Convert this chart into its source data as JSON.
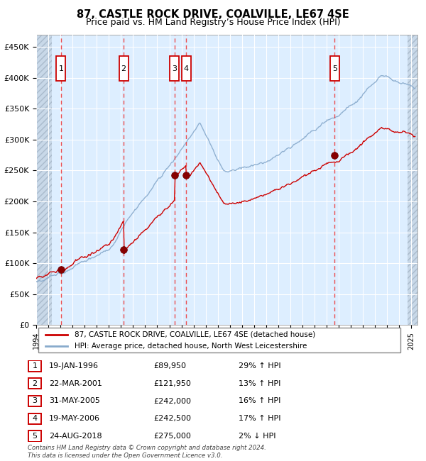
{
  "title": "87, CASTLE ROCK DRIVE, COALVILLE, LE67 4SE",
  "subtitle": "Price paid vs. HM Land Registry’s House Price Index (HPI)",
  "title_fontsize": 10.5,
  "subtitle_fontsize": 9,
  "xlim": [
    1994.0,
    2025.5
  ],
  "ylim": [
    0,
    470000
  ],
  "yticks": [
    0,
    50000,
    100000,
    150000,
    200000,
    250000,
    300000,
    350000,
    400000,
    450000
  ],
  "ytick_labels": [
    "£0",
    "£50K",
    "£100K",
    "£150K",
    "£200K",
    "£250K",
    "£300K",
    "£350K",
    "£400K",
    "£450K"
  ],
  "sale_dates_x": [
    1996.05,
    2001.22,
    2005.42,
    2006.38,
    2018.65
  ],
  "sale_prices_y": [
    89950,
    121950,
    242000,
    242500,
    275000
  ],
  "sale_labels": [
    "1",
    "2",
    "3",
    "4",
    "5"
  ],
  "vline_x": [
    1996.05,
    2001.22,
    2005.42,
    2006.38,
    2018.65
  ],
  "legend_line1": "87, CASTLE ROCK DRIVE, COALVILLE, LE67 4SE (detached house)",
  "legend_line2": "HPI: Average price, detached house, North West Leicestershire",
  "table_rows": [
    [
      "1",
      "19-JAN-1996",
      "£89,950",
      "29% ↑ HPI"
    ],
    [
      "2",
      "22-MAR-2001",
      "£121,950",
      "13% ↑ HPI"
    ],
    [
      "3",
      "31-MAY-2005",
      "£242,000",
      "16% ↑ HPI"
    ],
    [
      "4",
      "19-MAY-2006",
      "£242,500",
      "17% ↑ HPI"
    ],
    [
      "5",
      "24-AUG-2018",
      "£275,000",
      "2% ↓ HPI"
    ]
  ],
  "footer": "Contains HM Land Registry data © Crown copyright and database right 2024.\nThis data is licensed under the Open Government Licence v3.0.",
  "bg_color": "#ddeeff",
  "hatch_color": "#c8d8e8",
  "grid_color": "#ffffff",
  "red_line_color": "#cc0000",
  "blue_line_color": "#88aacc",
  "vline_color": "#ee3333",
  "number_box_color": "#cc0000"
}
